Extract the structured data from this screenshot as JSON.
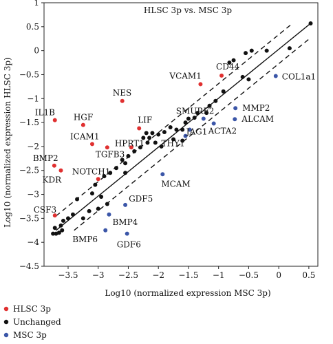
{
  "chart_data": {
    "type": "scatter",
    "title": "HLSC 3p vs. MSC 3p",
    "xlabel": "Log10 (normalized expression MSC 3p)",
    "ylabel": "Log10 (normalized expression HLSC 3p)",
    "xlim": [
      -3.9,
      0.65
    ],
    "ylim": [
      -4.5,
      1.0
    ],
    "x_ticks": [
      -3.5,
      -3,
      -2.5,
      -2,
      -1.5,
      -1,
      -0.5,
      0,
      0.5
    ],
    "y_ticks": [
      1,
      0.5,
      0,
      -0.5,
      -1,
      -1.5,
      -2,
      -2.5,
      -3,
      -3.5,
      -4,
      -4.5
    ],
    "x_tick_labels": [
      "−3.5",
      "−3",
      "−2.5",
      "−2",
      "−1.5",
      "−1",
      "−0.5",
      "0",
      "0.5"
    ],
    "y_tick_labels": [
      "1",
      "0.5",
      "0",
      "−0.5",
      "−1",
      "−1.5",
      "−2",
      "−2.5",
      "−3",
      "−3.5",
      "−4",
      "−4.5"
    ],
    "grid": false,
    "legend_position": "bottom-left",
    "colors": {
      "hlsc": "#e03030",
      "unchanged": "#111111",
      "msc": "#3b56a8"
    },
    "regression_line": {
      "from": [
        -3.7,
        -3.75
      ],
      "to": [
        0.53,
        0.57
      ]
    },
    "band_offset": 0.3,
    "series": [
      {
        "name": "HLSC 3p",
        "color_key": "hlsc",
        "points": [
          {
            "x": -3.72,
            "y": -1.45,
            "label": "IL1B"
          },
          {
            "x": -3.25,
            "y": -1.55,
            "label": "HGF"
          },
          {
            "x": -3.1,
            "y": -1.95,
            "label": "ICAM1"
          },
          {
            "x": -2.85,
            "y": -2.02,
            "label": "TGFB3"
          },
          {
            "x": -2.6,
            "y": -1.05,
            "label": "NES"
          },
          {
            "x": -2.32,
            "y": -1.62,
            "label": "LIF"
          },
          {
            "x": -2.45,
            "y": -2.02,
            "label": "HPRT1"
          },
          {
            "x": -1.3,
            "y": -0.7,
            "label": "VCAM1"
          },
          {
            "x": -0.95,
            "y": -0.52,
            "label": "CD44"
          },
          {
            "x": -3.73,
            "y": -2.4,
            "label": "BMP2"
          },
          {
            "x": -3.62,
            "y": -2.5,
            "label": "KDR"
          },
          {
            "x": -3.0,
            "y": -2.68,
            "label": "NOTCH1"
          },
          {
            "x": -3.72,
            "y": -3.44,
            "label": "CSF3"
          }
        ]
      },
      {
        "name": "Unchanged",
        "color_key": "unchanged",
        "points": [
          {
            "x": 0.53,
            "y": 0.57
          },
          {
            "x": 0.18,
            "y": 0.05
          },
          {
            "x": -0.2,
            "y": 0.0
          },
          {
            "x": -0.45,
            "y": 0.0
          },
          {
            "x": -0.55,
            "y": -0.05
          },
          {
            "x": -0.75,
            "y": -0.2
          },
          {
            "x": -0.82,
            "y": -0.25
          },
          {
            "x": -0.6,
            "y": -0.55
          },
          {
            "x": -0.5,
            "y": -0.6
          },
          {
            "x": -0.92,
            "y": -0.85
          },
          {
            "x": -1.05,
            "y": -1.05
          },
          {
            "x": -1.15,
            "y": -1.15
          },
          {
            "x": -1.2,
            "y": -1.3
          },
          {
            "x": -1.35,
            "y": -1.3
          },
          {
            "x": -1.4,
            "y": -1.4
          },
          {
            "x": -1.5,
            "y": -1.42
          },
          {
            "x": -1.55,
            "y": -1.5
          },
          {
            "x": -1.6,
            "y": -1.65
          },
          {
            "x": -1.7,
            "y": -1.65
          },
          {
            "x": -1.8,
            "y": -1.6
          },
          {
            "x": -1.9,
            "y": -1.7
          },
          {
            "x": -2.0,
            "y": -1.75
          },
          {
            "x": -2.1,
            "y": -1.72
          },
          {
            "x": -2.15,
            "y": -1.82
          },
          {
            "x": -2.2,
            "y": -1.72
          },
          {
            "x": -2.25,
            "y": -1.82
          },
          {
            "x": -1.75,
            "y": -1.85
          },
          {
            "x": -1.6,
            "y": -1.88
          },
          {
            "x": -2.05,
            "y": -1.92
          },
          {
            "x": -2.18,
            "y": -1.92
          },
          {
            "x": -1.95,
            "y": -2.0
          },
          {
            "x": -2.3,
            "y": -2.02
          },
          {
            "x": -2.4,
            "y": -2.1
          },
          {
            "x": -2.5,
            "y": -2.2
          },
          {
            "x": -2.6,
            "y": -2.28
          },
          {
            "x": -2.55,
            "y": -2.35
          },
          {
            "x": -2.7,
            "y": -2.45
          },
          {
            "x": -2.8,
            "y": -2.55
          },
          {
            "x": -2.9,
            "y": -2.62
          },
          {
            "x": -2.55,
            "y": -2.55
          },
          {
            "x": -3.05,
            "y": -2.8
          },
          {
            "x": -3.1,
            "y": -2.98
          },
          {
            "x": -2.95,
            "y": -3.05
          },
          {
            "x": -2.85,
            "y": -3.2
          },
          {
            "x": -3.0,
            "y": -3.3
          },
          {
            "x": -3.15,
            "y": -3.35
          },
          {
            "x": -3.35,
            "y": -3.1
          },
          {
            "x": -3.42,
            "y": -3.42
          },
          {
            "x": -3.5,
            "y": -3.5
          },
          {
            "x": -3.58,
            "y": -3.55
          },
          {
            "x": -3.6,
            "y": -3.75
          },
          {
            "x": -3.65,
            "y": -3.8
          },
          {
            "x": -3.7,
            "y": -3.82
          },
          {
            "x": -3.72,
            "y": -3.7
          },
          {
            "x": -3.75,
            "y": -3.82
          },
          {
            "x": -3.62,
            "y": -3.65
          },
          {
            "x": -3.25,
            "y": -3.5
          }
        ]
      },
      {
        "name": "MSC 3p",
        "color_key": "msc",
        "points": [
          {
            "x": -0.05,
            "y": -0.53,
            "label": "COL1a1"
          },
          {
            "x": -0.72,
            "y": -1.2,
            "label": "MMP2"
          },
          {
            "x": -0.73,
            "y": -1.43,
            "label": "ALCAM"
          },
          {
            "x": -1.08,
            "y": -1.52,
            "label": "ACTA2"
          },
          {
            "x": -1.25,
            "y": -1.42,
            "label": "SMURF2"
          },
          {
            "x": -1.48,
            "y": -1.65,
            "label": "JAG1"
          },
          {
            "x": -1.55,
            "y": -1.78,
            "label": "THY1"
          },
          {
            "x": -1.93,
            "y": -2.58,
            "label": "MCAM"
          },
          {
            "x": -2.55,
            "y": -3.22,
            "label": "GDF5"
          },
          {
            "x": -2.82,
            "y": -3.42,
            "label": "BMP4"
          },
          {
            "x": -2.88,
            "y": -3.75,
            "label": "BMP6"
          },
          {
            "x": -2.52,
            "y": -3.82,
            "label": "GDF6"
          }
        ]
      }
    ]
  }
}
